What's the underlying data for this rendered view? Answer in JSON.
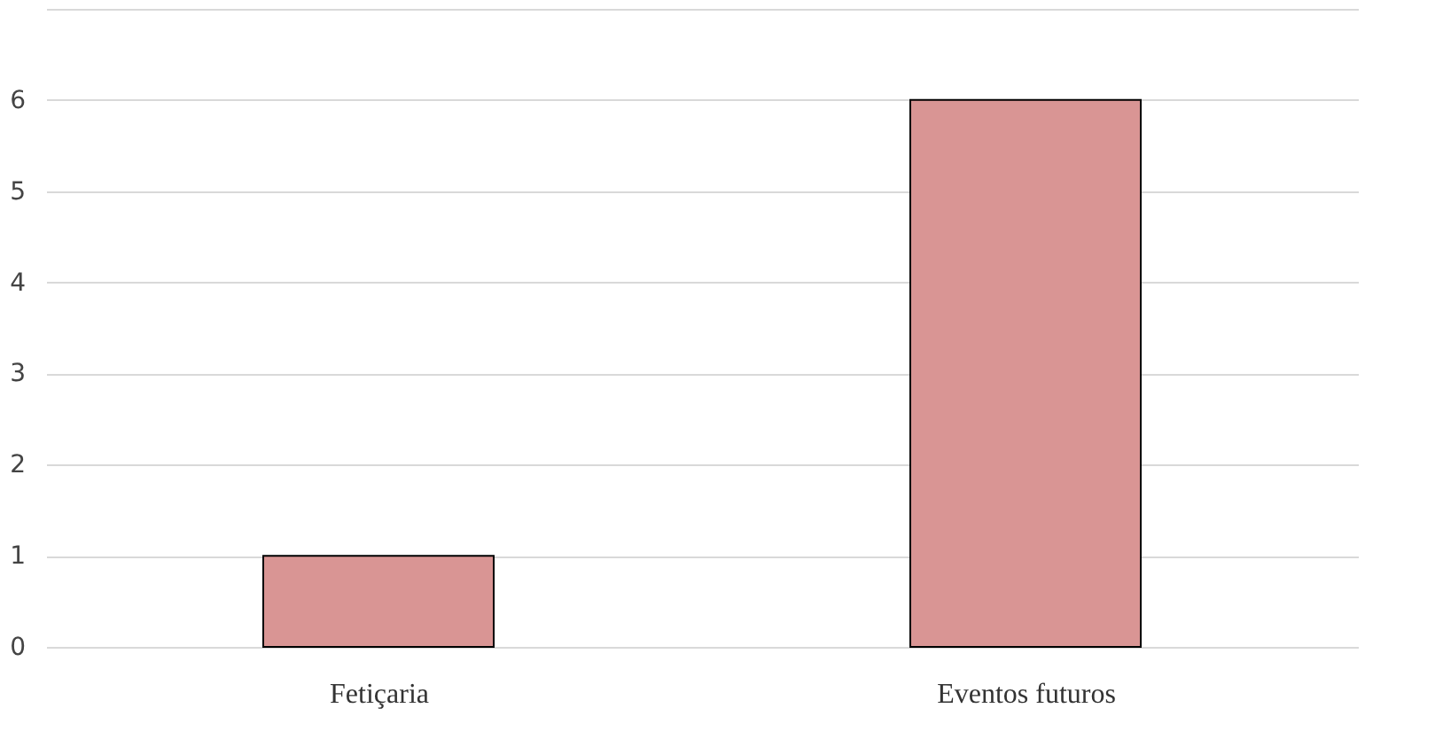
{
  "chart_data": {
    "type": "bar",
    "categories": [
      "Fetiçaria",
      "Eventos futuros"
    ],
    "values": [
      1,
      6
    ],
    "color": "#d99594",
    "ylim": [
      0,
      7
    ],
    "yticks": [
      0,
      1,
      2,
      3,
      4,
      5,
      6,
      {
        "value": 7,
        "label": null
      }
    ],
    "grid": "y"
  }
}
